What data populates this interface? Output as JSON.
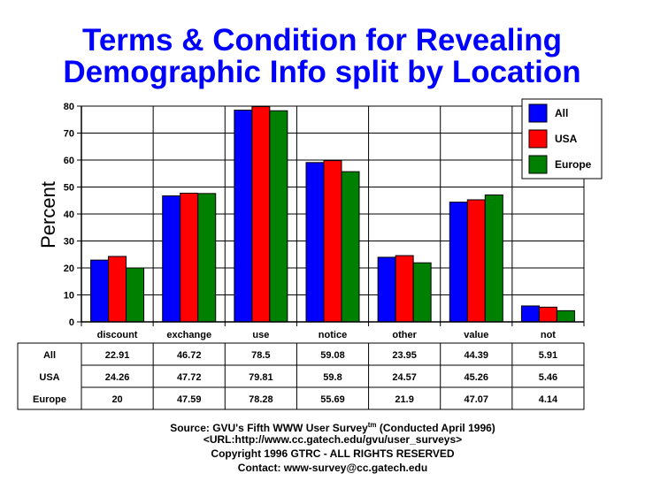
{
  "chart_data": {
    "type": "bar",
    "title_lines": [
      "Terms & Condition for Revealing",
      "Demographic Info split by Location"
    ],
    "ylabel": "Percent",
    "xlabel": "",
    "ylim": [
      0,
      80
    ],
    "yticks": [
      0,
      10,
      20,
      30,
      40,
      50,
      60,
      70,
      80
    ],
    "grid": true,
    "legend_position": "top-right",
    "categories": [
      "discount",
      "exchange",
      "use",
      "notice",
      "other",
      "value",
      "not"
    ],
    "series": [
      {
        "name": "All",
        "color": "#0000ff",
        "values": [
          22.91,
          46.72,
          78.5,
          59.08,
          23.95,
          44.39,
          5.91
        ]
      },
      {
        "name": "USA",
        "color": "#ff0000",
        "values": [
          24.26,
          47.72,
          79.81,
          59.8,
          24.57,
          45.26,
          5.46
        ]
      },
      {
        "name": "Europe",
        "color": "#008000",
        "values": [
          20,
          47.59,
          78.28,
          55.69,
          21.9,
          47.07,
          4.14
        ]
      }
    ],
    "table_values": {
      "All": [
        "22.91",
        "46.72",
        "78.5",
        "59.08",
        "23.95",
        "44.39",
        "5.91"
      ],
      "USA": [
        "24.26",
        "47.72",
        "79.81",
        "59.8",
        "24.57",
        "45.26",
        "5.46"
      ],
      "Europe": [
        "20",
        "47.59",
        "78.28",
        "55.69",
        "21.9",
        "47.07",
        "4.14"
      ]
    }
  },
  "footer": {
    "source": "Source: GVU's Fifth WWW User Survey",
    "tm": "tm",
    "conducted": " (Conducted April 1996)",
    "url": "<URL:http://www.cc.gatech.edu/gvu/user_surveys>",
    "copyright": "Copyright 1996 GTRC -  ALL RIGHTS RESERVED",
    "contact": "Contact: www-survey@cc.gatech.edu"
  }
}
